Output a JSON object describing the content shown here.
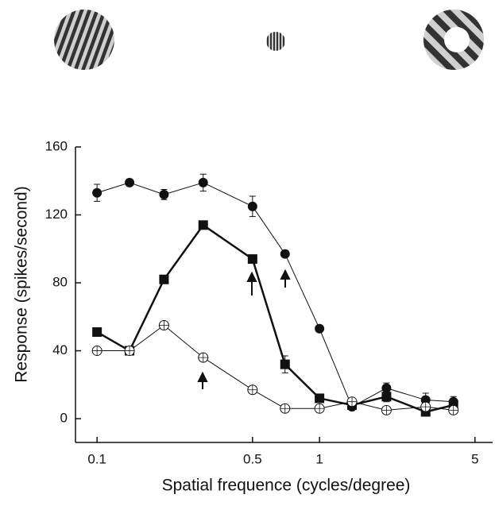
{
  "chart_data": {
    "type": "line",
    "x_label": "Spatial frequence (cycles/degree)",
    "y_label": "Response (spikes/second)",
    "x": [
      0.1,
      0.14,
      0.2,
      0.3,
      0.5,
      0.7,
      1,
      1.4,
      2,
      3,
      4
    ],
    "x_log": true,
    "xlim": [
      0.08,
      6
    ],
    "xticks": [
      0.1,
      0.5,
      1,
      5
    ],
    "ylim": [
      -14,
      160
    ],
    "yticks": [
      0,
      40,
      80,
      120,
      160
    ],
    "series": [
      {
        "color": "#111111",
        "marker": "filled-circle",
        "line_width": 1,
        "values": [
          133,
          139,
          132,
          139,
          125,
          97,
          53,
          7,
          18,
          11,
          10
        ],
        "errors": [
          5,
          2,
          3,
          5,
          6,
          2,
          2,
          2,
          3,
          4,
          3
        ]
      },
      {
        "color": "#111111",
        "marker": "filled-square",
        "line_width": 2.5,
        "values": [
          51,
          40,
          82,
          114,
          94,
          32,
          12,
          8,
          13,
          4,
          8
        ],
        "errors": [
          2,
          2,
          2,
          2,
          2,
          5,
          2,
          2,
          3,
          2,
          2
        ]
      },
      {
        "color": "#111111",
        "marker": "open-circle",
        "line_width": 1,
        "values": [
          40,
          40,
          55,
          36,
          17,
          6,
          6,
          10,
          5,
          7,
          5
        ]
      }
    ]
  }
}
